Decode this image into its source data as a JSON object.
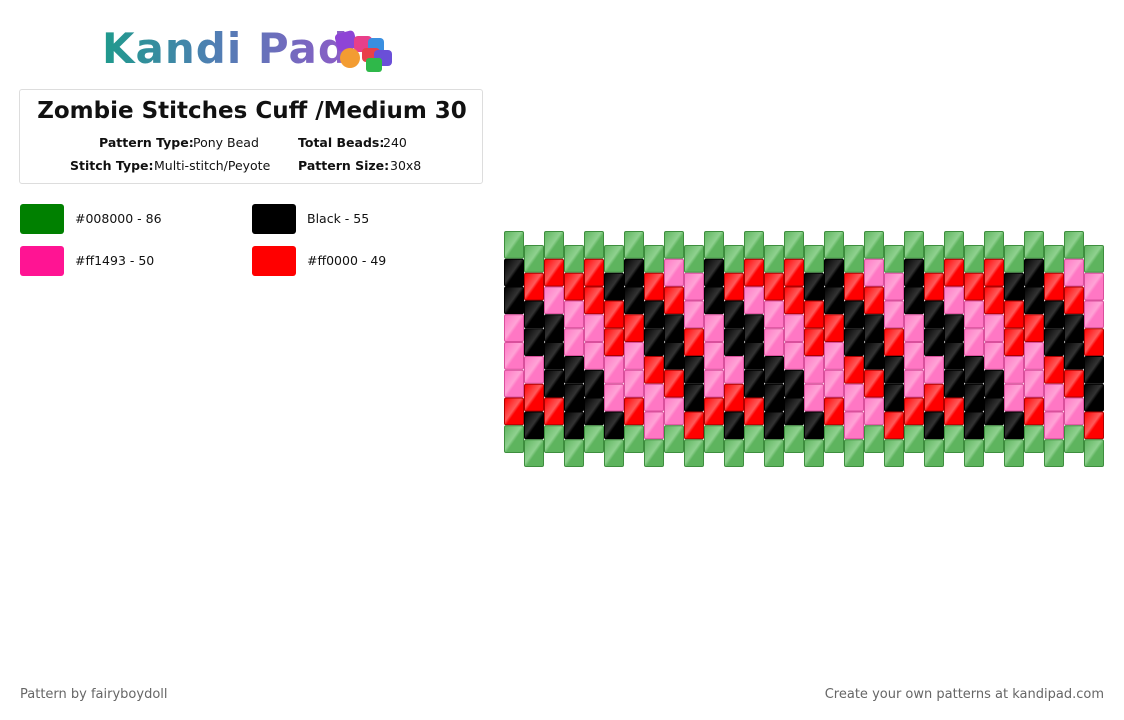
{
  "header": {
    "logo": "Kandi Pad"
  },
  "pattern": {
    "title": "Zombie Stitches Cuff /Medium 30",
    "fields": [
      {
        "label": "Pattern Type:",
        "value": "Pony Bead"
      },
      {
        "label": "Total Beads:",
        "value": "240"
      },
      {
        "label": "Stitch Type:",
        "value": "Multi-stitch/Peyote"
      },
      {
        "label": "Pattern Size:",
        "value": "30x8"
      }
    ]
  },
  "legend": [
    {
      "color": "#008000",
      "label": "#008000 - 86"
    },
    {
      "color": "#000000",
      "label": "Black - 55"
    },
    {
      "color": "#ff1493",
      "label": "#ff1493 - 50"
    },
    {
      "color": "#ff0000",
      "label": "#ff0000 - 49"
    }
  ],
  "footer": {
    "left": "Pattern by fairyboydoll",
    "right": "Create your own patterns at kandipad.com"
  }
}
